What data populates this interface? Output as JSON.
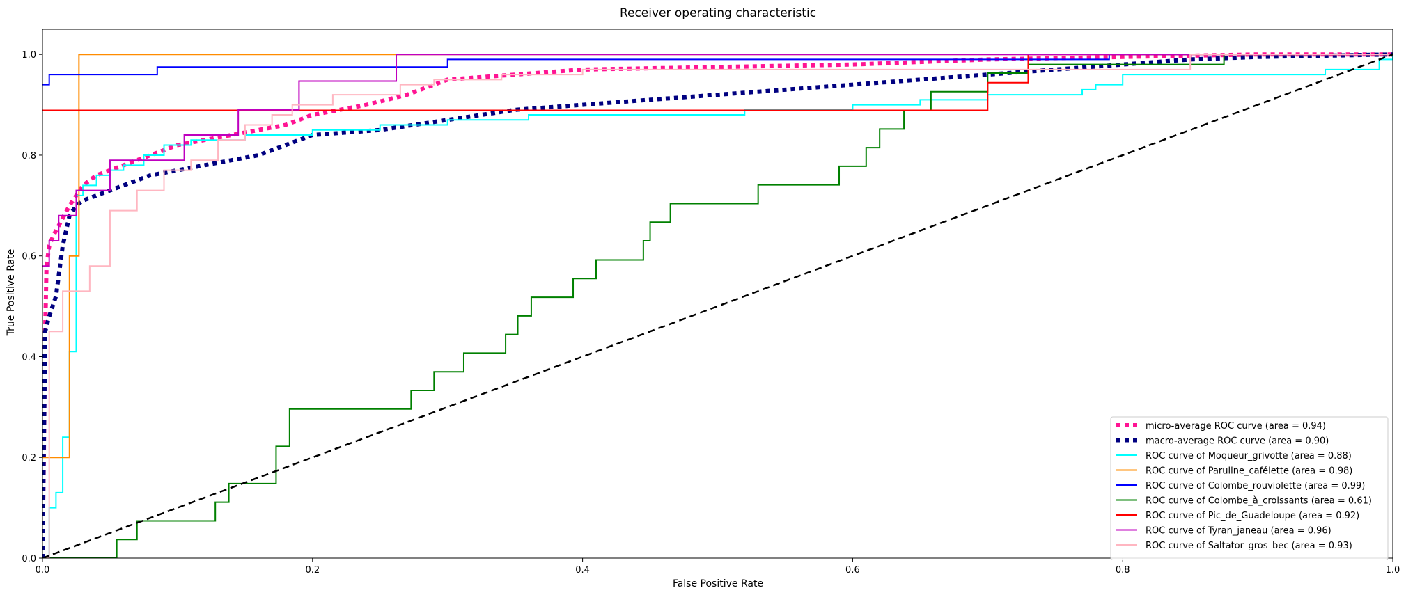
{
  "chart_data": {
    "type": "line",
    "title": "Receiver operating characteristic",
    "xlabel": "False Positive Rate",
    "ylabel": "True Positive Rate",
    "xlim": [
      0.0,
      1.0
    ],
    "ylim": [
      0.0,
      1.05
    ],
    "xticks": [
      "0.0",
      "0.2",
      "0.4",
      "0.6",
      "0.8",
      "1.0"
    ],
    "yticks": [
      "0.0",
      "0.2",
      "0.4",
      "0.6",
      "0.8",
      "1.0"
    ],
    "grid": false,
    "legend_position": "lower right",
    "series": [
      {
        "name": "micro-average ROC curve (area = 0.94)",
        "color": "#ff1493",
        "style": "dotted",
        "width": 6,
        "step": false,
        "x": [
          0,
          0.001,
          0.002,
          0.003,
          0.005,
          0.008,
          0.012,
          0.016,
          0.02,
          0.025,
          0.03,
          0.04,
          0.05,
          0.06,
          0.07,
          0.08,
          0.09,
          0.1,
          0.12,
          0.14,
          0.16,
          0.18,
          0.2,
          0.24,
          0.27,
          0.3,
          0.35,
          0.4,
          0.5,
          0.6,
          0.7,
          0.8,
          0.9,
          1.0
        ],
        "y": [
          0,
          0.2,
          0.45,
          0.58,
          0.62,
          0.64,
          0.66,
          0.68,
          0.7,
          0.72,
          0.74,
          0.76,
          0.77,
          0.78,
          0.79,
          0.8,
          0.81,
          0.82,
          0.83,
          0.84,
          0.85,
          0.86,
          0.88,
          0.9,
          0.92,
          0.95,
          0.96,
          0.97,
          0.975,
          0.98,
          0.99,
          0.995,
          1.0,
          1.0
        ]
      },
      {
        "name": "macro-average ROC curve (area = 0.90)",
        "color": "#000080",
        "style": "dotted",
        "width": 6,
        "step": false,
        "x": [
          0,
          0.002,
          0.005,
          0.01,
          0.015,
          0.02,
          0.025,
          0.03,
          0.04,
          0.06,
          0.08,
          0.1,
          0.12,
          0.14,
          0.16,
          0.18,
          0.2,
          0.25,
          0.3,
          0.35,
          0.4,
          0.45,
          0.5,
          0.55,
          0.6,
          0.65,
          0.7,
          0.75,
          0.8,
          0.85,
          0.9,
          1.0
        ],
        "y": [
          0,
          0.45,
          0.48,
          0.52,
          0.62,
          0.68,
          0.7,
          0.71,
          0.72,
          0.74,
          0.76,
          0.77,
          0.78,
          0.79,
          0.8,
          0.82,
          0.84,
          0.85,
          0.87,
          0.89,
          0.9,
          0.91,
          0.92,
          0.93,
          0.94,
          0.95,
          0.96,
          0.97,
          0.98,
          0.99,
          0.995,
          1.0
        ]
      },
      {
        "name": "ROC curve of Moqueur_grivotte (area = 0.88)",
        "color": "#00ffff",
        "style": "solid",
        "width": 2,
        "step": true,
        "x": [
          0,
          0.005,
          0.01,
          0.015,
          0.02,
          0.025,
          0.03,
          0.04,
          0.05,
          0.06,
          0.075,
          0.09,
          0.11,
          0.15,
          0.2,
          0.25,
          0.3,
          0.36,
          0.52,
          0.6,
          0.65,
          0.7,
          0.77,
          0.78,
          0.8,
          0.95,
          0.99,
          1.0
        ],
        "y": [
          0,
          0.1,
          0.13,
          0.24,
          0.41,
          0.72,
          0.74,
          0.76,
          0.77,
          0.78,
          0.8,
          0.82,
          0.83,
          0.84,
          0.85,
          0.86,
          0.87,
          0.88,
          0.89,
          0.9,
          0.91,
          0.92,
          0.93,
          0.94,
          0.96,
          0.97,
          0.99,
          1.0
        ]
      },
      {
        "name": "ROC curve of Paruline_caféiette (area = 0.98)",
        "color": "#ff8c00",
        "style": "solid",
        "width": 2,
        "step": true,
        "x": [
          0,
          0.02,
          0.027,
          1.0
        ],
        "y": [
          0.2,
          0.6,
          1.0,
          1.0
        ]
      },
      {
        "name": "ROC curve of Colombe_rouviolette (area = 0.99)",
        "color": "#0000ff",
        "style": "solid",
        "width": 2,
        "step": true,
        "x": [
          0,
          0.005,
          0.085,
          0.3,
          0.79,
          1.0
        ],
        "y": [
          0.94,
          0.96,
          0.975,
          0.99,
          1.0,
          1.0
        ]
      },
      {
        "name": "ROC curve of Colombe_à_croissants (area = 0.61)",
        "color": "#008000",
        "style": "solid",
        "width": 2,
        "step": true,
        "x": [
          0,
          0.055,
          0.07,
          0.128,
          0.138,
          0.173,
          0.183,
          0.273,
          0.29,
          0.312,
          0.343,
          0.352,
          0.362,
          0.393,
          0.41,
          0.445,
          0.45,
          0.465,
          0.53,
          0.59,
          0.61,
          0.62,
          0.638,
          0.658,
          0.7,
          0.73,
          0.875,
          1.0
        ],
        "y": [
          0,
          0.037,
          0.074,
          0.111,
          0.148,
          0.222,
          0.296,
          0.333,
          0.37,
          0.407,
          0.444,
          0.481,
          0.518,
          0.555,
          0.592,
          0.63,
          0.667,
          0.704,
          0.741,
          0.778,
          0.815,
          0.852,
          0.889,
          0.926,
          0.963,
          0.98,
          1.0,
          1.0
        ]
      },
      {
        "name": "ROC curve of Pic_de_Guadeloupe (area = 0.92)",
        "color": "#ff0000",
        "style": "solid",
        "width": 2,
        "step": true,
        "x": [
          0,
          0.7,
          0.73,
          1.0
        ],
        "y": [
          0.889,
          0.944,
          1.0,
          1.0
        ]
      },
      {
        "name": "ROC curve of Tyran_janeau (area = 0.96)",
        "color": "#bf00bf",
        "style": "solid",
        "width": 2,
        "step": true,
        "x": [
          0,
          0.005,
          0.012,
          0.025,
          0.05,
          0.085,
          0.105,
          0.145,
          0.19,
          0.262,
          1.0
        ],
        "y": [
          0.58,
          0.63,
          0.68,
          0.73,
          0.79,
          0.79,
          0.84,
          0.89,
          0.947,
          1.0,
          1.0
        ]
      },
      {
        "name": "ROC curve of Saltator_gros_bec (area = 0.93)",
        "color": "#ffb6c1",
        "style": "solid",
        "width": 2,
        "step": true,
        "x": [
          0,
          0.005,
          0.015,
          0.035,
          0.05,
          0.07,
          0.09,
          0.11,
          0.13,
          0.15,
          0.17,
          0.185,
          0.215,
          0.265,
          0.29,
          0.34,
          0.4,
          0.6,
          0.85,
          1.0
        ],
        "y": [
          0,
          0.45,
          0.53,
          0.58,
          0.69,
          0.73,
          0.77,
          0.79,
          0.83,
          0.86,
          0.88,
          0.9,
          0.92,
          0.94,
          0.95,
          0.96,
          0.97,
          0.97,
          1.0,
          1.0
        ]
      },
      {
        "name": "",
        "color": "#000000",
        "style": "dashed",
        "width": 2.5,
        "step": false,
        "x": [
          0,
          1
        ],
        "y": [
          0,
          1
        ]
      }
    ]
  }
}
